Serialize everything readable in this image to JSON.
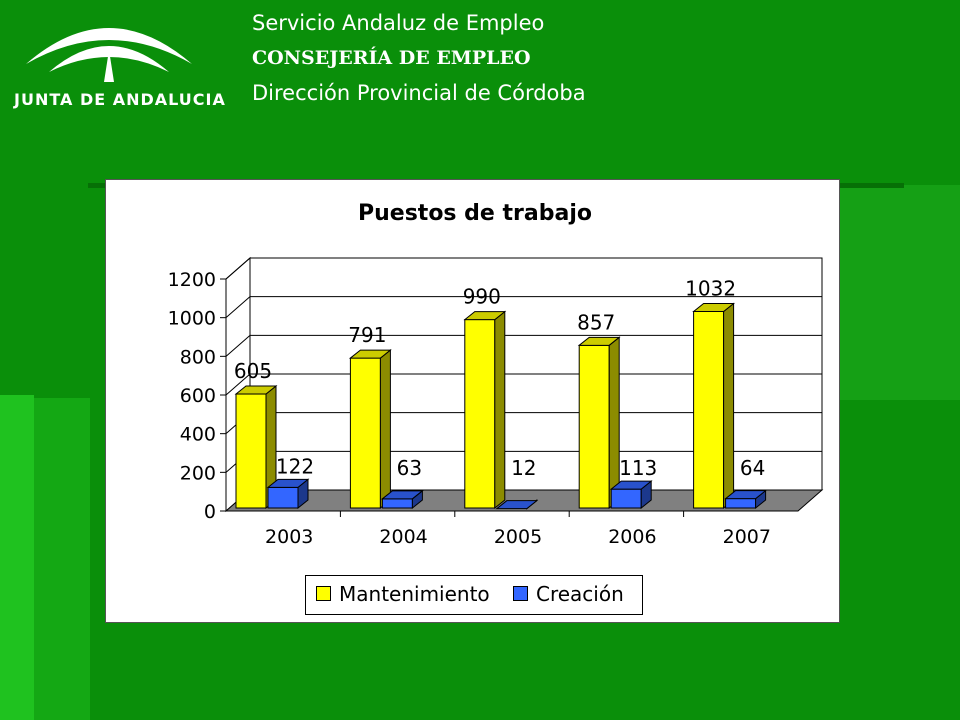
{
  "header": {
    "org_line1": "Servicio Andaluz de Empleo",
    "org_line2": "CONSEJERÍA DE EMPLEO",
    "org_line3": "Dirección Provincial de Córdoba",
    "logo_text": "JUNTA DE ANDALUCIA"
  },
  "colors": {
    "background": "#0a8f0a",
    "mantenimiento": "#ffff00",
    "creacion": "#3366ff"
  },
  "chart_data": {
    "type": "bar",
    "title": "Puestos de trabajo",
    "categories": [
      "2003",
      "2004",
      "2005",
      "2006",
      "2007"
    ],
    "series": [
      {
        "name": "Mantenimiento",
        "values": [
          605,
          791,
          990,
          857,
          1032
        ]
      },
      {
        "name": "Creación",
        "values": [
          122,
          63,
          12,
          113,
          64
        ]
      }
    ],
    "ylim": [
      0,
      1200
    ],
    "yticks": [
      0,
      200,
      400,
      600,
      800,
      1000,
      1200
    ],
    "grid": true,
    "legend_position": "bottom",
    "style": "3d"
  }
}
